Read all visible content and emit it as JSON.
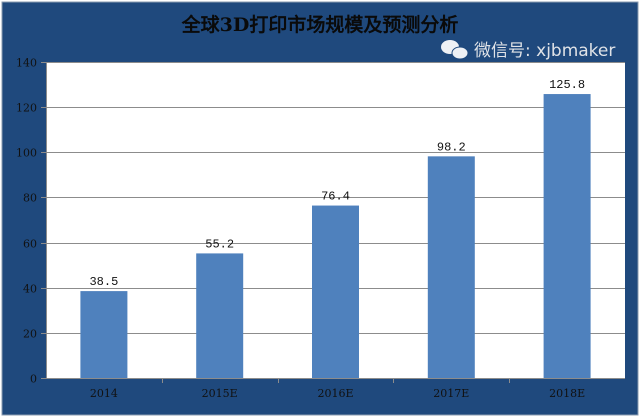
{
  "chart_data": {
    "type": "bar",
    "title": "全球3D打印市场规模及预测分析",
    "categories": [
      "2014",
      "2015E",
      "2016E",
      "2017E",
      "2018E"
    ],
    "values": [
      38.5,
      55.2,
      76.4,
      98.2,
      125.8
    ],
    "data_labels": [
      "38.5",
      "55.2",
      "76.4",
      "98.2",
      "125.8"
    ],
    "xlabel": "",
    "ylabel": "",
    "ylim": [
      0,
      140
    ],
    "yticks": [
      "0",
      "20",
      "40",
      "60",
      "80",
      "100",
      "120",
      "140"
    ],
    "grid": true,
    "legend": "none",
    "colors": {
      "bar": "#4F81BD",
      "background": "#1F497D",
      "plot": "#FFFFFF"
    }
  },
  "watermark": "微信号: xjbmaker"
}
